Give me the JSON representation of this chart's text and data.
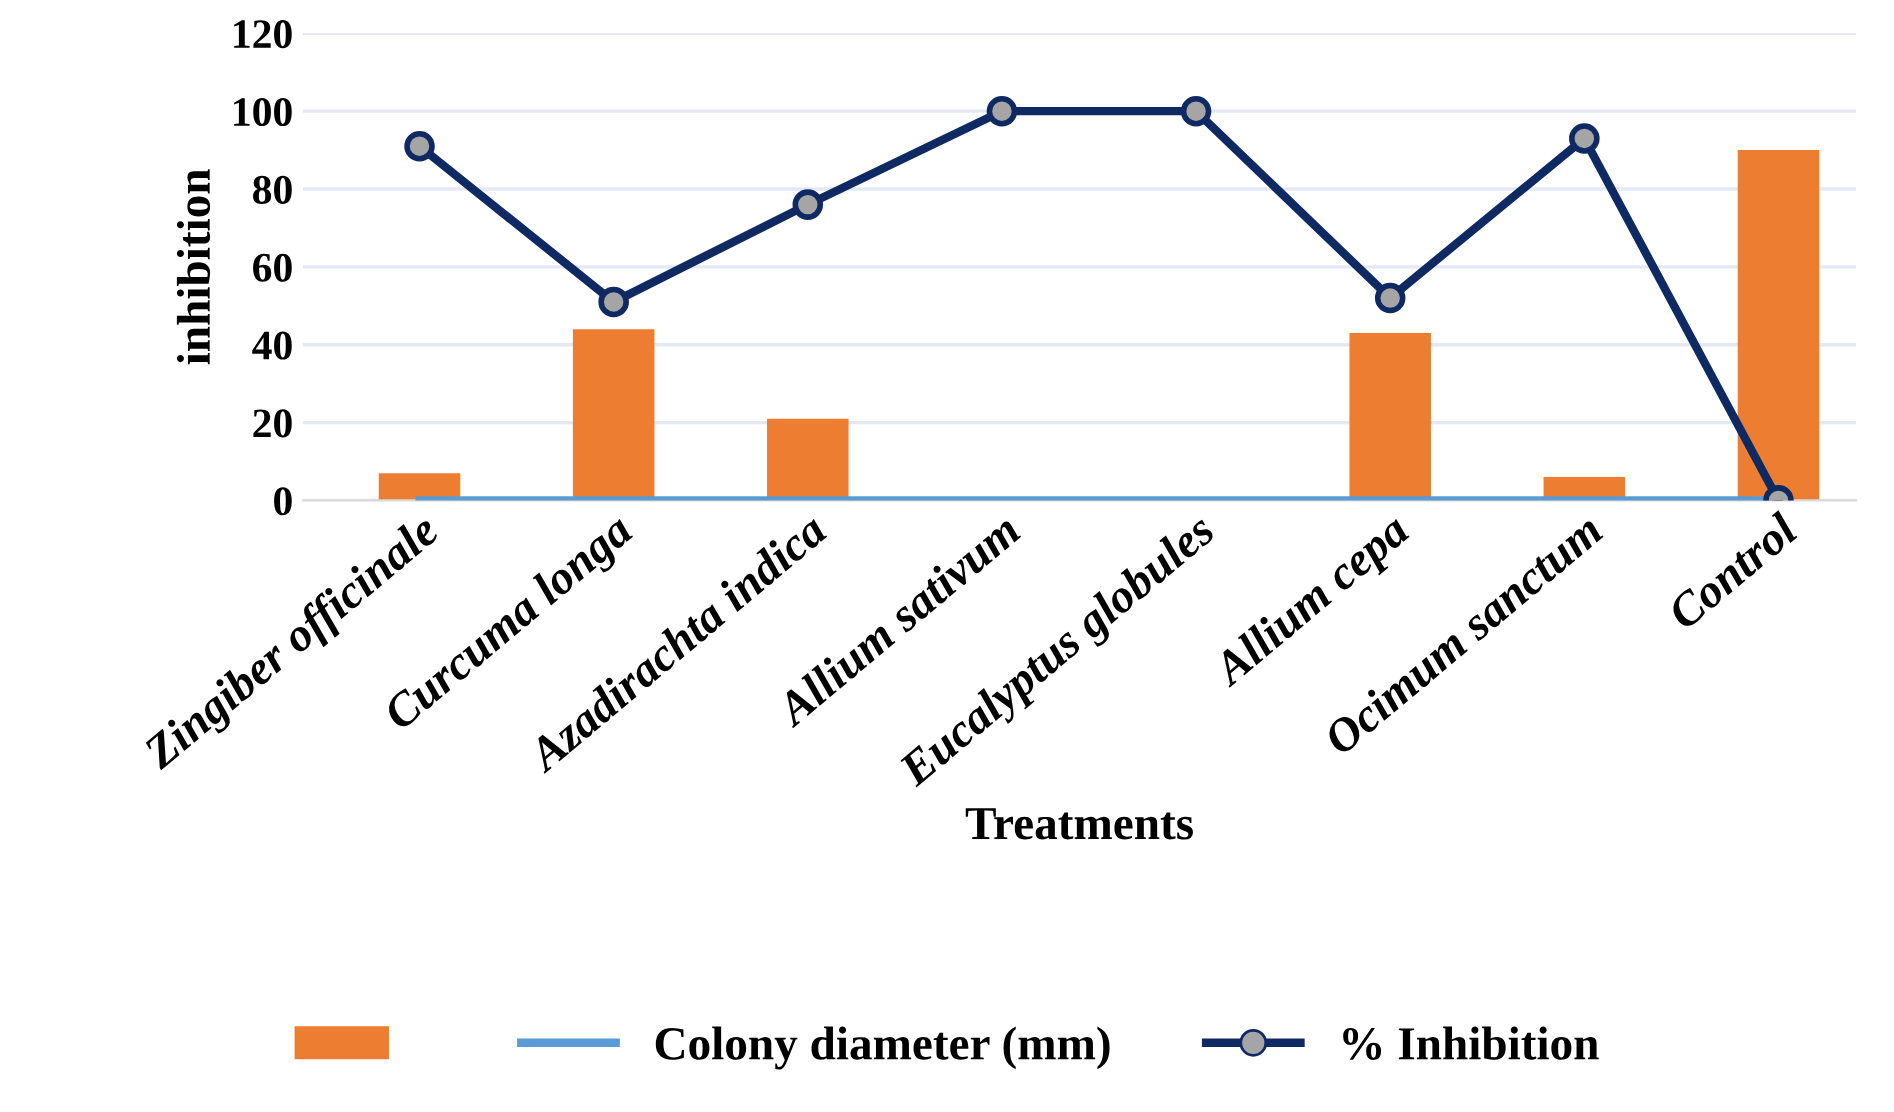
{
  "chart_data": {
    "type": "bar",
    "xlabel": "Treatments",
    "ylabel": "inhibition",
    "categories": [
      "Zingiber officinale",
      "Curcuma longa",
      "Azadirachta indica",
      "Allium sativum",
      "Eucalyptus globules",
      "Allium cepa",
      "Ocimum sanctum",
      "Control"
    ],
    "series": [
      {
        "color": "#ed7d31",
        "values": [
          7,
          44,
          21,
          0,
          0,
          43,
          6,
          90
        ]
      },
      {
        "type": "line",
        "name": "Colony diameter (mm)",
        "color": "#5b9bd5",
        "marker": "none",
        "values": [
          0,
          0,
          0,
          0,
          0,
          0,
          0,
          0
        ]
      },
      {
        "type": "line",
        "name": "% Inhibition",
        "color": "#0f2a63",
        "marker": "circle",
        "values": [
          91,
          51,
          76,
          100,
          100,
          52,
          93,
          0
        ]
      }
    ],
    "ylim": [
      0,
      120
    ],
    "yticks": [
      0,
      20,
      40,
      60,
      80,
      100,
      120
    ],
    "grid": "y",
    "legend": "bottom"
  }
}
